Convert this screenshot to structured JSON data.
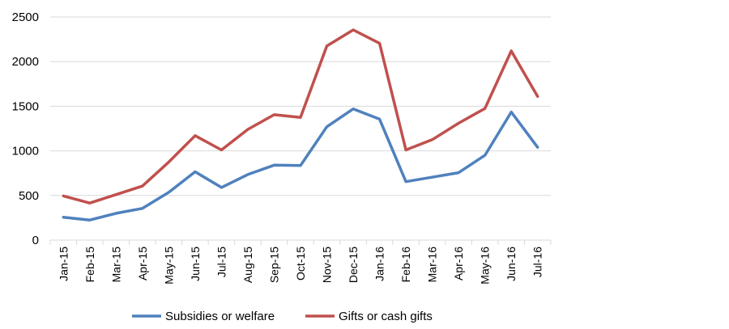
{
  "chart_data": {
    "type": "line",
    "title": "",
    "xlabel": "",
    "ylabel": "",
    "categories": [
      "Jan-15",
      "Feb-15",
      "Mar-15",
      "Apr-15",
      "May-15",
      "Jun-15",
      "Jul-15",
      "Aug-15",
      "Sep-15",
      "Oct-15",
      "Nov-15",
      "Dec-15",
      "Jan-16",
      "Feb-16",
      "Mar-16",
      "Apr-16",
      "May-16",
      "Jun-16",
      "Jul-16"
    ],
    "ylim": [
      0,
      2500
    ],
    "yticks": [
      0,
      500,
      1000,
      1500,
      2000,
      2500
    ],
    "ytick_labels": [
      "0",
      "500",
      "1000",
      "1500",
      "2000",
      "2500"
    ],
    "grid": "horizontal",
    "legend_position": "bottom",
    "series": [
      {
        "name": "Subsidies or welfare",
        "color": "#4f81bd",
        "values": [
          255,
          225,
          300,
          355,
          535,
          765,
          590,
          735,
          840,
          835,
          1270,
          1470,
          1355,
          655,
          705,
          755,
          950,
          1435,
          1040
        ]
      },
      {
        "name": "Gifts or cash gifts",
        "color": "#c0504d",
        "values": [
          495,
          415,
          510,
          605,
          875,
          1170,
          1010,
          1240,
          1405,
          1375,
          2175,
          2355,
          2205,
          1010,
          1125,
          1310,
          1475,
          2120,
          1610
        ]
      }
    ]
  }
}
